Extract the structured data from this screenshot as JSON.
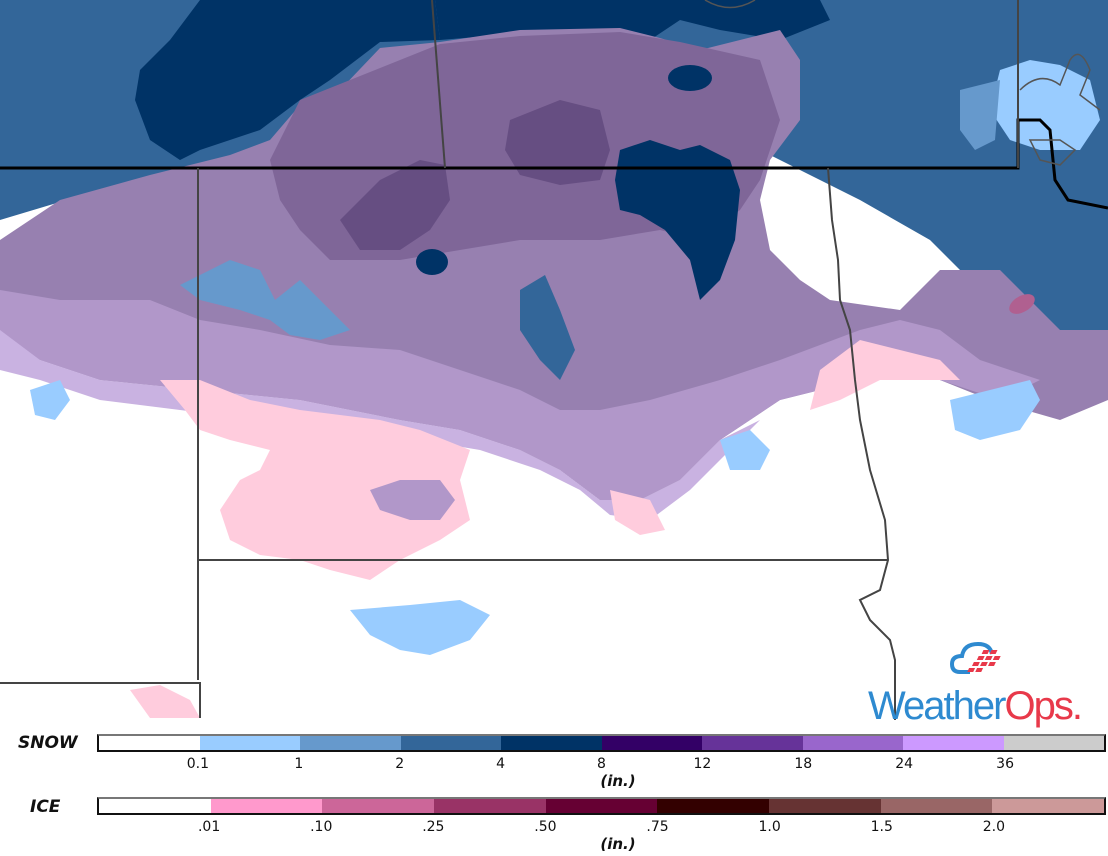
{
  "map": {
    "colors": {
      "background": "#ffffff",
      "snow_01_1": "#99ccff",
      "snow_1_2": "#6699cc",
      "snow_2_4": "#336699",
      "snow_4_8": "#003366",
      "mix_light_purple": "#c9b2e1",
      "mix_mid_purple": "#b197c9",
      "mix_purple": "#9780b0",
      "mix_deep_purple": "#7f6698",
      "mix_darkest_purple": "#664e82",
      "ice_pink": "#ffccdd",
      "ice_magenta_spot": "#b06090",
      "state_line": "#333333",
      "country_line": "#000000"
    }
  },
  "legend": {
    "snow": {
      "label": "SNOW",
      "unit": "(in.)",
      "colors": [
        "#ffffff",
        "#99ccff",
        "#6699cc",
        "#336699",
        "#003366",
        "#330066",
        "#663399",
        "#9966cc",
        "#cc99ff",
        "#cccccc"
      ],
      "ticks": [
        "0.1",
        "1",
        "2",
        "4",
        "8",
        "12",
        "18",
        "24",
        "36"
      ]
    },
    "ice": {
      "label": "ICE",
      "unit": "(in.)",
      "colors": [
        "#ffffff",
        "#ff99cc",
        "#cc6699",
        "#993366",
        "#660033",
        "#330000",
        "#663333",
        "#996666",
        "#cc9999"
      ],
      "ticks": [
        ".01",
        ".10",
        ".25",
        ".50",
        ".75",
        "1.0",
        "1.5",
        "2.0"
      ]
    }
  },
  "logo": {
    "word_weather": "Weather",
    "word_ops": "Ops",
    "dot": ".",
    "blue": "#2e8ad0",
    "red": "#e8394a"
  }
}
